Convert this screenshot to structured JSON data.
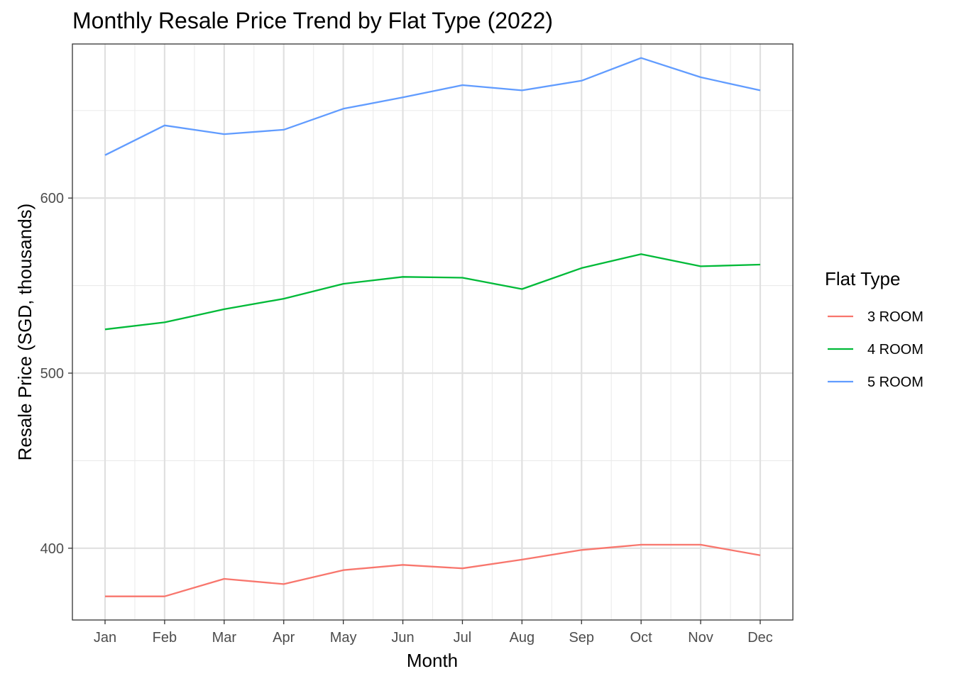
{
  "chart_data": {
    "type": "line",
    "title": "Monthly Resale Price Trend by Flat Type (2022)",
    "xlabel": "Month",
    "ylabel": "Resale Price (SGD, thousands)",
    "categories": [
      "Jan",
      "Feb",
      "Mar",
      "Apr",
      "May",
      "Jun",
      "Jul",
      "Aug",
      "Sep",
      "Oct",
      "Nov",
      "Dec"
    ],
    "ylim": [
      359,
      688
    ],
    "y_ticks": [
      400,
      500,
      600
    ],
    "y_minor_ticks": [
      450,
      550,
      650
    ],
    "grid": true,
    "legend": {
      "title": "Flat Type",
      "placement": "right"
    },
    "series": [
      {
        "name": "3 ROOM",
        "color": "#F8766D",
        "values": [
          372.5,
          372.5,
          382.5,
          379.5,
          387.5,
          390.5,
          388.5,
          393.5,
          399.0,
          402.0,
          402.0,
          396.0
        ]
      },
      {
        "name": "4 ROOM",
        "color": "#00BA38",
        "values": [
          525.0,
          529.0,
          536.5,
          542.5,
          551.0,
          555.0,
          554.5,
          548.0,
          560.0,
          568.0,
          561.0,
          562.0
        ]
      },
      {
        "name": "5 ROOM",
        "color": "#619CFF",
        "values": [
          624.5,
          641.5,
          636.5,
          639.0,
          651.0,
          657.5,
          664.5,
          661.5,
          667.0,
          680.0,
          669.0,
          661.5
        ]
      }
    ]
  }
}
